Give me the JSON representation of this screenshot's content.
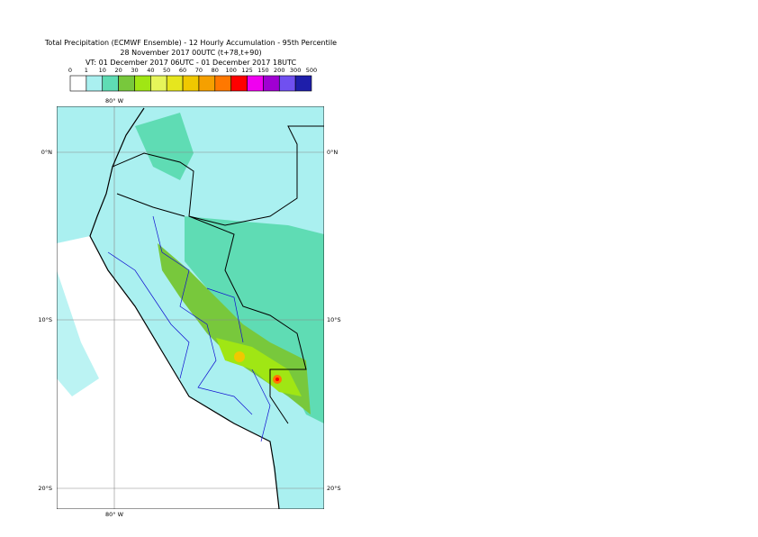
{
  "header": {
    "title": "Total Precipitation (ECMWF Ensemble) - 12 Hourly Accumulation - 95th Percentile",
    "run": "28 November 2017 00UTC (t+78,t+90)",
    "valid": "VT: 01 December 2017 06UTC - 01 December 2017 18UTC"
  },
  "legend": {
    "thresholds": [
      0,
      1,
      10,
      20,
      30,
      40,
      50,
      60,
      70,
      80,
      100,
      125,
      150,
      200,
      300,
      500
    ],
    "colors": [
      "#ffffff",
      "#aaf0f0",
      "#5fdcb4",
      "#78c83c",
      "#a0e614",
      "#e6f55a",
      "#e6e61e",
      "#f0c800",
      "#f5a000",
      "#ff7800",
      "#ff0000",
      "#f000f0",
      "#a000d2",
      "#7050f0",
      "#1e1eaa"
    ]
  },
  "map": {
    "lon_top": "80° W",
    "lon_bottom": "80° W",
    "lat_left": [
      "0°N",
      "10°S",
      "20°S"
    ],
    "lat_right": [
      "0°N",
      "10°S",
      "20°S"
    ]
  }
}
